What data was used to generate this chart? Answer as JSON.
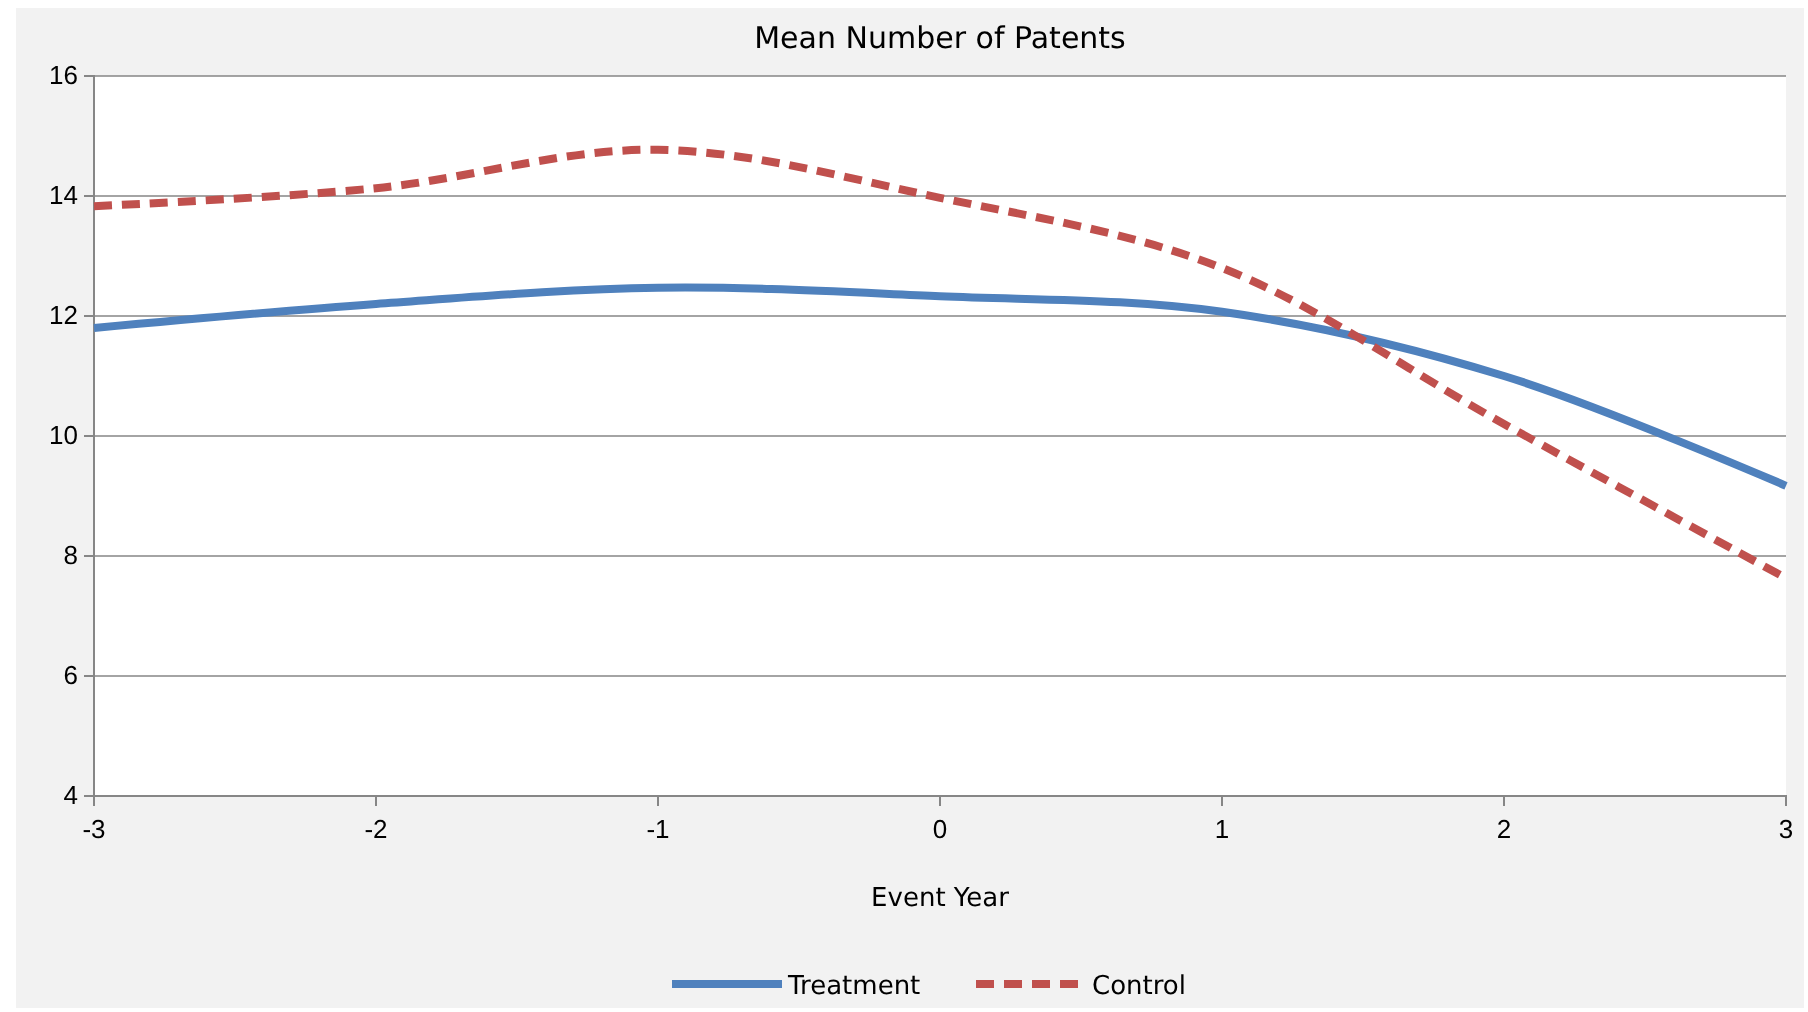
{
  "chart_data": {
    "type": "line",
    "title": "Mean Number of Patents",
    "xlabel": "Event Year",
    "x": [
      -3,
      -2,
      -1,
      0,
      1,
      2,
      3
    ],
    "series": [
      {
        "name": "Treatment",
        "color": "#4f81bd",
        "line_style": "solid",
        "values": [
          11.8,
          12.2,
          12.47,
          12.33,
          12.07,
          11.0,
          9.17
        ]
      },
      {
        "name": "Control",
        "color": "#c0504d",
        "line_style": "dashed",
        "values": [
          13.83,
          14.13,
          14.77,
          13.97,
          12.8,
          10.2,
          7.63
        ]
      }
    ],
    "xlim": [
      -3,
      3
    ],
    "xticks": [
      -3,
      -2,
      -1,
      0,
      1,
      2,
      3
    ],
    "ylim": [
      4,
      16
    ],
    "yticks": [
      4,
      6,
      8,
      10,
      12,
      14,
      16
    ],
    "grid": "y",
    "legend": "bottom",
    "marker": "none"
  }
}
